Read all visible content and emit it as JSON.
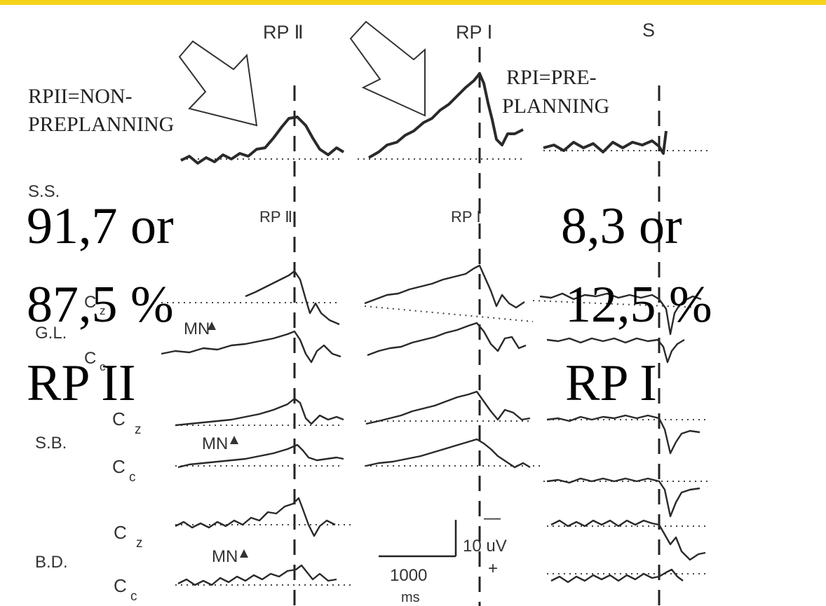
{
  "header_labels": {
    "rp2": "RP Ⅱ",
    "rp1": "RP Ⅰ",
    "s": "S"
  },
  "annotations": {
    "rp2_line1": "RPII=NON-",
    "rp2_line2": "PREPLANNING",
    "rp1_line1": "RPI=PRE-",
    "rp1_line2": "PLANNING"
  },
  "subjects": {
    "ss": "S.S.",
    "gl": "G.L.",
    "sb": "S.B.",
    "bd": "B.D."
  },
  "channels": {
    "cz": "C",
    "cz_sub": "z",
    "cc": "C",
    "cc_sub": "c",
    "mn": "MN"
  },
  "mid_labels": {
    "rp2": "RP Ⅱ",
    "rp1": "RP Ⅰ"
  },
  "overlay": {
    "left_line1": "91,7 or",
    "left_line2": "87,5 %",
    "left_line3": "RP II",
    "right_line1": "8,3 or",
    "right_line2": "12,5 %",
    "right_line3": "RP I"
  },
  "scale": {
    "voltage": "10 uV",
    "minus": "—",
    "plus": "+",
    "time": "1000",
    "time_unit": "ms"
  },
  "colors": {
    "top_bar": "#f5d21a",
    "ink": "#2a2a2a"
  }
}
